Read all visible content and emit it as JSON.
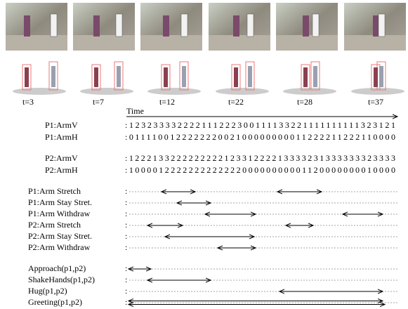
{
  "figure": {
    "frame_labels": [
      "t=3",
      "t=7",
      "t=12",
      "t=22",
      "t=28",
      "t=37"
    ],
    "time_label": "Time",
    "sequences": [
      {
        "name": "P1:ArmV",
        "code": ":123233332222111222300111133221111111111323121"
      },
      {
        "name": "P1:ArmH",
        "code": ":011110012222222002100000000011222211222110000"
      },
      {
        "name": "P2:ArmV",
        "code": ":122213322222222212331222213333231333333323333"
      },
      {
        "name": "P2:ArmH",
        "code": ":100001222222222222200000000001120000000010000"
      }
    ],
    "separator": ":",
    "primitive_events": [
      "P1:Arm Stretch",
      "P1:Arm Stay Stret.",
      "P1:Arm Withdraw",
      "P2:Arm Stretch",
      "P2:Arm Stay Stret.",
      "P2:Arm Withdraw"
    ],
    "composite_events": [
      "Approach(p1,p2)",
      "ShakeHands(p1,p2)",
      "Hug(p1,p2)",
      "Greeting(p1,p2)"
    ]
  }
}
